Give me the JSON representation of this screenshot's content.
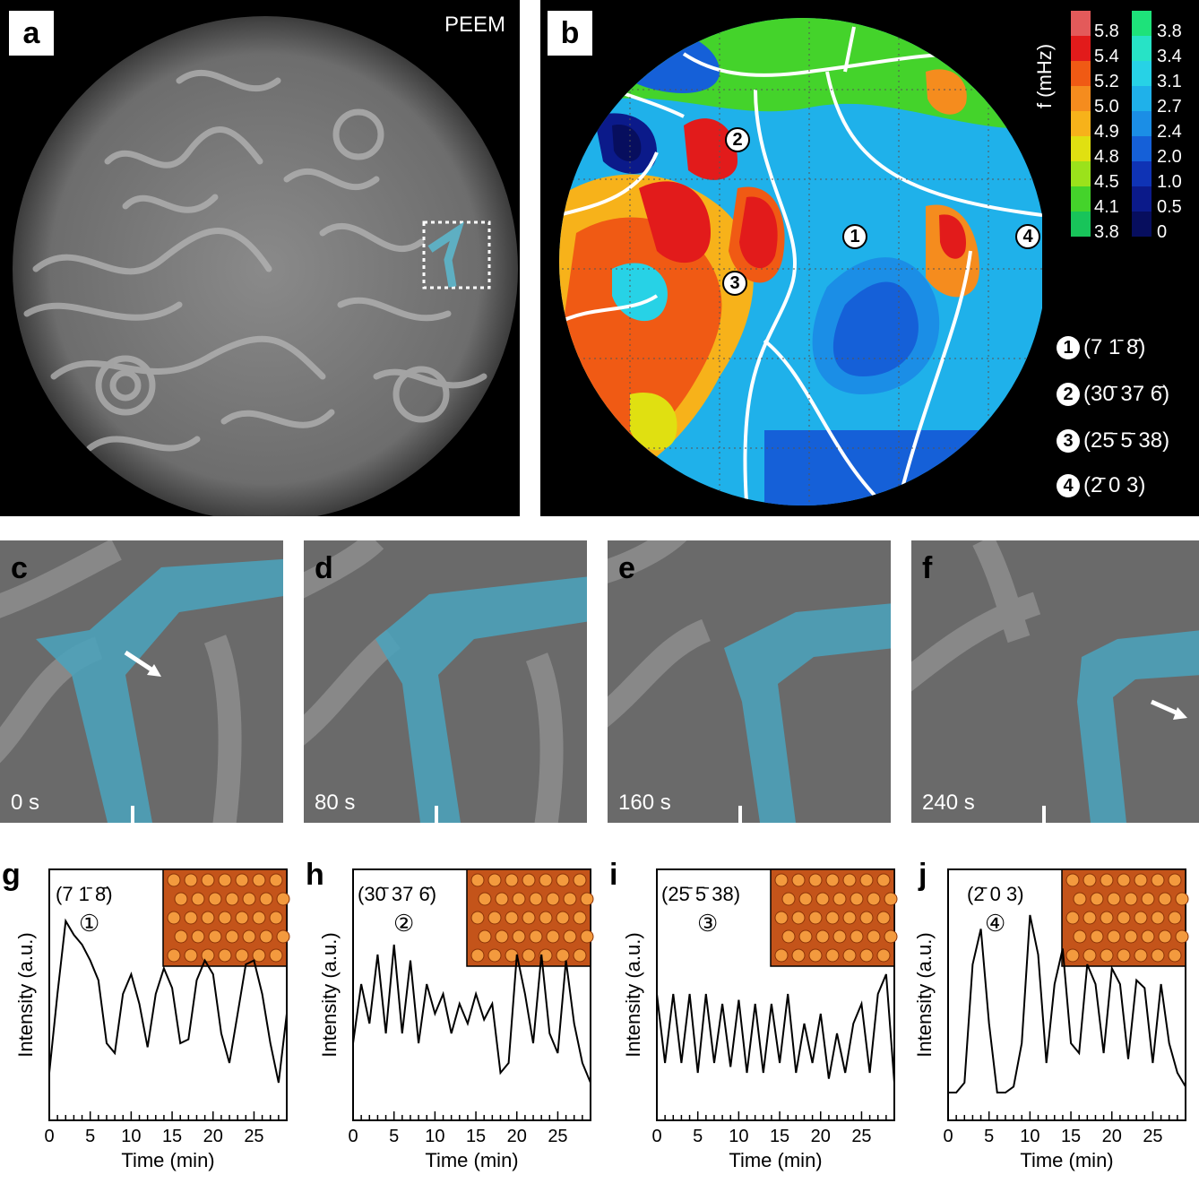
{
  "panel_a": {
    "label": "a",
    "title": "PEEM"
  },
  "panel_b": {
    "label": "b",
    "axis_label": "f (mHz)",
    "scale_left": [
      "5.8",
      "5.4",
      "5.2",
      "5.0",
      "4.9",
      "4.8",
      "4.5",
      "4.1",
      "3.8"
    ],
    "scale_right": [
      "3.8",
      "3.4",
      "3.1",
      "2.7",
      "2.4",
      "2.0",
      "1.0",
      "0.5",
      "0"
    ],
    "scale_left_colors": [
      "#e35a5a",
      "#e21b1b",
      "#f05a14",
      "#f58c1e",
      "#f7b21a",
      "#e0e011",
      "#9be21b",
      "#44d32b",
      "#18c45a"
    ],
    "scale_right_colors": [
      "#1ee27a",
      "#27e3c6",
      "#27d2e6",
      "#1fb1ea",
      "#1b8ee6",
      "#1560d8",
      "#0f33b5",
      "#0b1a8a",
      "#070e5e"
    ],
    "markers": [
      "1",
      "2",
      "3",
      "4"
    ],
    "legend": [
      {
        "n": "1",
        "text": "(7 1̄ 8̄)"
      },
      {
        "n": "2",
        "text": "(30̄ 37 6̄)"
      },
      {
        "n": "3",
        "text": "(25̄ 5̄ 38)"
      },
      {
        "n": "4",
        "text": "(2̄ 0 3)"
      }
    ]
  },
  "frames": [
    {
      "label": "c",
      "time": "0 s"
    },
    {
      "label": "d",
      "time": "80 s"
    },
    {
      "label": "e",
      "time": "160 s"
    },
    {
      "label": "f",
      "time": "240 s"
    }
  ],
  "graphs": [
    {
      "label": "g",
      "facet": "(7 1̄ 8̄)",
      "marker": "①"
    },
    {
      "label": "h",
      "facet": "(30̄ 37 6̄)",
      "marker": "②"
    },
    {
      "label": "i",
      "facet": "(25̄ 5̄ 38)",
      "marker": "③"
    },
    {
      "label": "j",
      "facet": "(2̄ 0 3)",
      "marker": "④"
    }
  ],
  "axes": {
    "ylabel": "Intensity (a.u.)",
    "xlabel": "Time (min)",
    "xticks": [
      "0",
      "5",
      "10",
      "15",
      "20",
      "25"
    ]
  },
  "chart_data": [
    {
      "type": "line",
      "xlabel": "Time (min)",
      "ylabel": "Intensity (a.u.)",
      "xlim": [
        0,
        29
      ],
      "x": [
        0,
        1,
        2,
        3,
        4,
        5,
        6,
        7,
        8,
        9,
        10,
        11,
        12,
        13,
        14,
        15,
        16,
        17,
        18,
        19,
        20,
        21,
        22,
        23,
        24,
        25,
        26,
        27,
        28,
        29
      ],
      "values": [
        0.15,
        0.55,
        0.92,
        0.85,
        0.8,
        0.72,
        0.62,
        0.3,
        0.25,
        0.55,
        0.65,
        0.5,
        0.28,
        0.55,
        0.68,
        0.58,
        0.3,
        0.32,
        0.62,
        0.72,
        0.65,
        0.35,
        0.2,
        0.45,
        0.7,
        0.72,
        0.55,
        0.3,
        0.1,
        0.45
      ]
    },
    {
      "type": "line",
      "xlabel": "Time (min)",
      "ylabel": "Intensity (a.u.)",
      "xlim": [
        0,
        29
      ],
      "x": [
        0,
        1,
        2,
        3,
        4,
        5,
        6,
        7,
        8,
        9,
        10,
        11,
        12,
        13,
        14,
        15,
        16,
        17,
        18,
        19,
        20,
        21,
        22,
        23,
        24,
        25,
        26,
        27,
        28,
        29
      ],
      "values": [
        0.3,
        0.6,
        0.4,
        0.75,
        0.35,
        0.8,
        0.35,
        0.72,
        0.3,
        0.6,
        0.45,
        0.55,
        0.35,
        0.5,
        0.4,
        0.55,
        0.42,
        0.5,
        0.15,
        0.2,
        0.75,
        0.55,
        0.3,
        0.75,
        0.35,
        0.25,
        0.72,
        0.4,
        0.2,
        0.1
      ]
    },
    {
      "type": "line",
      "xlabel": "Time (min)",
      "ylabel": "Intensity (a.u.)",
      "xlim": [
        0,
        29
      ],
      "x": [
        0,
        1,
        2,
        3,
        4,
        5,
        6,
        7,
        8,
        9,
        10,
        11,
        12,
        13,
        14,
        15,
        16,
        17,
        18,
        19,
        20,
        21,
        22,
        23,
        24,
        25,
        26,
        27,
        28,
        29
      ],
      "values": [
        0.55,
        0.2,
        0.55,
        0.2,
        0.55,
        0.15,
        0.55,
        0.2,
        0.5,
        0.18,
        0.52,
        0.15,
        0.5,
        0.15,
        0.5,
        0.2,
        0.55,
        0.15,
        0.4,
        0.2,
        0.45,
        0.12,
        0.35,
        0.15,
        0.4,
        0.5,
        0.15,
        0.55,
        0.65,
        0.1
      ]
    },
    {
      "type": "line",
      "xlabel": "Time (min)",
      "ylabel": "Intensity (a.u.)",
      "xlim": [
        0,
        29
      ],
      "x": [
        0,
        1,
        2,
        3,
        4,
        5,
        6,
        7,
        8,
        9,
        10,
        11,
        12,
        13,
        14,
        15,
        16,
        17,
        18,
        19,
        20,
        21,
        22,
        23,
        24,
        25,
        26,
        27,
        28,
        29
      ],
      "values": [
        0.05,
        0.05,
        0.1,
        0.7,
        0.88,
        0.4,
        0.05,
        0.05,
        0.08,
        0.3,
        0.95,
        0.75,
        0.2,
        0.6,
        0.78,
        0.3,
        0.25,
        0.7,
        0.6,
        0.25,
        0.68,
        0.6,
        0.22,
        0.62,
        0.58,
        0.2,
        0.6,
        0.3,
        0.15,
        0.08
      ]
    }
  ]
}
